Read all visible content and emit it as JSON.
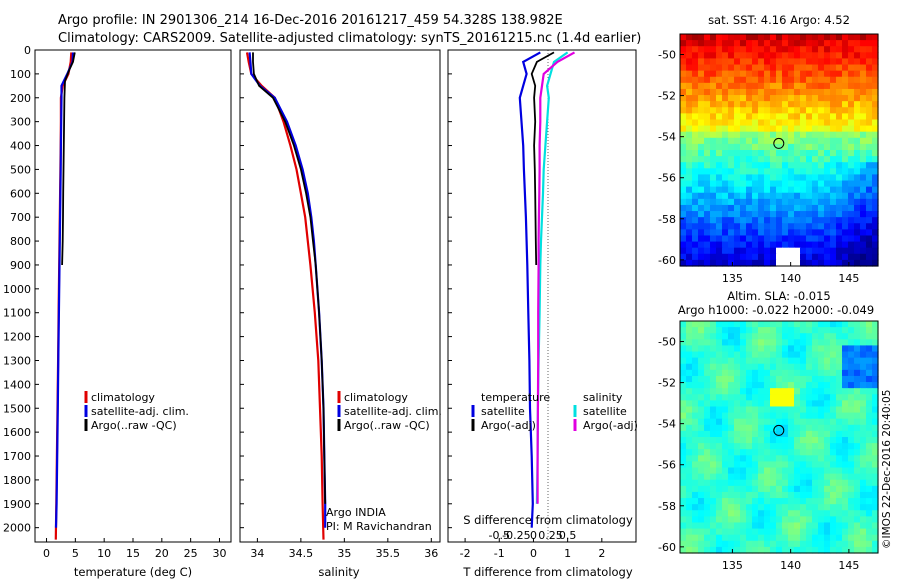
{
  "title": {
    "line1": "Argo profile: IN 2901306_214 16-Dec-2016 20161217_459 54.328S 138.982E",
    "line2": "Climatology: CARS2009. Satellite-adjusted climatology: synTS_20161215.nc (1.4d earlier)"
  },
  "colors": {
    "climatology": "#e00000",
    "satellite": "#0000e0",
    "argo": "#000000",
    "sat_salinity": "#00e0e0",
    "argo_salinity": "#e000e0"
  },
  "chart_data": [
    {
      "type": "line",
      "xlabel": "temperature (deg C)",
      "ylabel": "",
      "xlim": [
        -2,
        32
      ],
      "ylim": [
        2060,
        0
      ],
      "xticks": [
        0,
        5,
        10,
        15,
        20,
        25,
        30
      ],
      "yticks": [
        0,
        100,
        200,
        300,
        400,
        500,
        600,
        700,
        800,
        900,
        1000,
        1100,
        1200,
        1300,
        1400,
        1500,
        1600,
        1700,
        1800,
        1900,
        2000
      ],
      "legend": [
        "climatology",
        "satellite-adj. clim.",
        "Argo(..raw -QC)"
      ],
      "series": [
        {
          "name": "climatology",
          "color": "red",
          "x": [
            4.3,
            4.2,
            3.8,
            2.8,
            2.5,
            2.5,
            2.45,
            2.4,
            2.35,
            2.3,
            2.25,
            2.2,
            2.1,
            2.0,
            1.9,
            1.8,
            1.7,
            1.6
          ],
          "y": [
            10,
            50,
            100,
            150,
            200,
            300,
            400,
            500,
            600,
            700,
            800,
            900,
            1100,
            1300,
            1500,
            1700,
            1900,
            2050
          ]
        },
        {
          "name": "satellite-adj. clim.",
          "color": "blue",
          "x": [
            4.6,
            4.5,
            3.6,
            2.6,
            2.6,
            2.55,
            2.5,
            2.45,
            2.4,
            2.35,
            2.3,
            2.25,
            2.15,
            2.05,
            1.95,
            1.85,
            1.75,
            1.65
          ],
          "y": [
            10,
            50,
            100,
            150,
            200,
            300,
            400,
            500,
            600,
            700,
            800,
            900,
            1100,
            1300,
            1500,
            1700,
            1900,
            2000
          ]
        },
        {
          "name": "Argo(..raw -QC)",
          "color": "black",
          "x": [
            4.9,
            4.6,
            4.0,
            3.2,
            3.1,
            3.05,
            3.0,
            2.95,
            2.9,
            2.85,
            2.8,
            2.7
          ],
          "y": [
            10,
            50,
            80,
            130,
            200,
            300,
            400,
            500,
            600,
            700,
            800,
            900
          ]
        }
      ]
    },
    {
      "type": "line",
      "xlabel": "salinity",
      "ylabel": "",
      "xlim": [
        33.8,
        36.1
      ],
      "ylim": [
        2060,
        0
      ],
      "xticks": [
        34,
        34.5,
        35,
        35.5,
        36
      ],
      "xticklabels": [
        "34",
        "34.5",
        "35",
        "35.5",
        "36"
      ],
      "legend": [
        "climatology",
        "satellite-adj. clim.",
        "Argo(..raw -QC)"
      ],
      "annotations": [
        "Argo INDIA",
        "PI: M Ravichandran"
      ],
      "series": [
        {
          "name": "climatology",
          "color": "red",
          "x": [
            33.88,
            33.9,
            33.93,
            34.05,
            34.2,
            34.3,
            34.38,
            34.45,
            34.5,
            34.55,
            34.58,
            34.61,
            34.66,
            34.7,
            34.72,
            34.74,
            34.75,
            34.76
          ],
          "y": [
            10,
            50,
            100,
            150,
            200,
            300,
            400,
            500,
            600,
            700,
            800,
            900,
            1100,
            1300,
            1500,
            1700,
            1900,
            2050
          ]
        },
        {
          "name": "satellite-adj. clim.",
          "color": "blue",
          "x": [
            33.91,
            33.92,
            33.93,
            34.03,
            34.2,
            34.34,
            34.44,
            34.52,
            34.58,
            34.62,
            34.65,
            34.67,
            34.71,
            34.74,
            34.76,
            34.77,
            34.78,
            34.78
          ],
          "y": [
            10,
            50,
            100,
            150,
            200,
            300,
            400,
            500,
            600,
            700,
            800,
            900,
            1100,
            1300,
            1500,
            1700,
            1900,
            2000
          ]
        },
        {
          "name": "Argo(..raw -QC)",
          "color": "black",
          "x": [
            33.95,
            33.95,
            33.96,
            34.02,
            34.18,
            34.32,
            34.42,
            34.5,
            34.56,
            34.61,
            34.64,
            34.67,
            34.71,
            34.74,
            34.76,
            34.77,
            34.78
          ],
          "y": [
            10,
            50,
            100,
            150,
            200,
            300,
            400,
            500,
            600,
            700,
            800,
            900,
            1100,
            1300,
            1500,
            1700,
            1900
          ]
        }
      ]
    },
    {
      "type": "line",
      "xlabel": "T difference from climatology",
      "xlabel2": "S difference from climatology",
      "xlim": [
        -2.5,
        3
      ],
      "ylim": [
        2060,
        0
      ],
      "xticks": [
        -2,
        -1,
        0,
        1,
        2
      ],
      "xticks_S": [
        "-0.5",
        "-0.25",
        "0",
        "0.25",
        "0.5"
      ],
      "legend": {
        "temperature": [
          "temperature",
          "satellite",
          "Argo(-adj)"
        ],
        "salinity": [
          "salinity",
          "satellite",
          "Argo(-adj)"
        ]
      },
      "series": [
        {
          "name": "satellite",
          "color": "blue",
          "x": [
            0.2,
            -0.3,
            -0.2,
            -0.3,
            -0.4,
            -0.35,
            -0.3,
            -0.28,
            -0.25,
            -0.22,
            -0.2,
            -0.18,
            -0.15,
            -0.12,
            -0.1,
            -0.05,
            -0.02,
            -0.05
          ],
          "y": [
            10,
            50,
            100,
            150,
            200,
            300,
            400,
            500,
            600,
            700,
            800,
            900,
            1100,
            1300,
            1500,
            1700,
            1900,
            2000
          ]
        },
        {
          "name": "Argo(-adj)",
          "color": "black",
          "x": [
            0.6,
            0.1,
            -0.05,
            0.05,
            0.02,
            0.05,
            0.02,
            0.04,
            0.05,
            0.06,
            0.07,
            0.08
          ],
          "y": [
            10,
            50,
            100,
            150,
            200,
            300,
            400,
            500,
            600,
            700,
            800,
            900
          ]
        },
        {
          "name": "satellite",
          "color": "cyan",
          "x": [
            1.0,
            0.6,
            0.5,
            0.4,
            0.45,
            0.4,
            0.35,
            0.3,
            0.28,
            0.25,
            0.22,
            0.2,
            0.18,
            0.15,
            0.13,
            0.12,
            0.1
          ],
          "y": [
            10,
            50,
            100,
            150,
            200,
            300,
            400,
            500,
            600,
            700,
            800,
            900,
            1100,
            1300,
            1500,
            1700,
            1900
          ]
        },
        {
          "name": "Argo(-adj)",
          "color": "magenta",
          "x": [
            1.2,
            0.7,
            0.3,
            0.25,
            0.2,
            0.2,
            0.18,
            0.18,
            0.17,
            0.16,
            0.15,
            0.15,
            0.14,
            0.14,
            0.13,
            0.12,
            0.12
          ],
          "y": [
            10,
            50,
            100,
            150,
            200,
            300,
            400,
            500,
            600,
            700,
            800,
            900,
            1100,
            1300,
            1500,
            1700,
            1900
          ]
        }
      ]
    },
    {
      "type": "heatmap",
      "title": "sat. SST: 4.16  Argo: 4.52",
      "xlim": [
        130.5,
        147.5
      ],
      "ylim": [
        -60.3,
        -49
      ],
      "xticks": [
        135,
        140,
        145
      ],
      "yticks": [
        -50,
        -52,
        -54,
        -56,
        -58,
        -60
      ],
      "marker": {
        "lon": 138.982,
        "lat": -54.328
      }
    },
    {
      "type": "heatmap",
      "title": "Altim. SLA: -0.015",
      "subtitle": "Argo h1000: -0.022  h2000: -0.049",
      "xlim": [
        130.5,
        147.5
      ],
      "ylim": [
        -60.3,
        -49
      ],
      "xticks": [
        135,
        140,
        145
      ],
      "yticks": [
        -50,
        -52,
        -54,
        -56,
        -58,
        -60
      ],
      "marker": {
        "lon": 138.982,
        "lat": -54.328
      },
      "credit": "©IMOS 22-Dec-2016 20:40:05"
    }
  ]
}
